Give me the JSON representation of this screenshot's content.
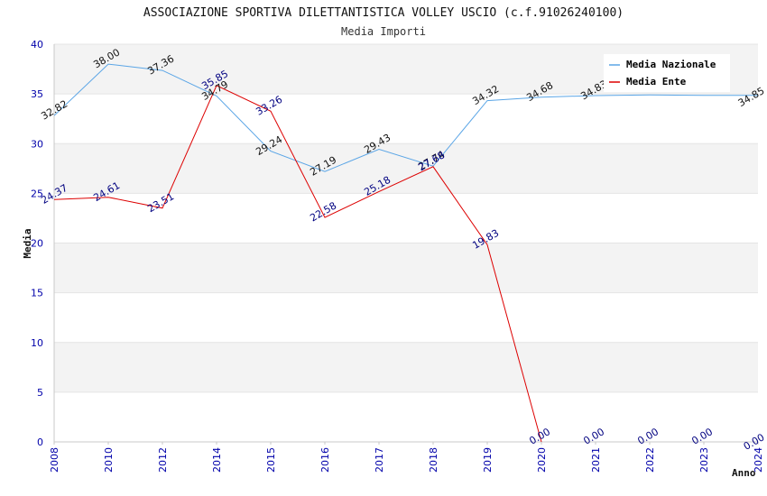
{
  "chart_data": {
    "type": "line",
    "title": "ASSOCIAZIONE SPORTIVA DILETTANTISTICA VOLLEY USCIO (c.f.91026240100)",
    "subtitle": "Media Importi",
    "ylabel": "Media",
    "xlabel": "Anno",
    "x": [
      "2008",
      "2010",
      "2012",
      "2014",
      "2015",
      "2016",
      "2017",
      "2018",
      "2019",
      "2020",
      "2021",
      "2022",
      "2023",
      "2024"
    ],
    "ylim": [
      0,
      40
    ],
    "yticks": [
      0,
      5,
      10,
      15,
      20,
      25,
      30,
      35,
      40
    ],
    "grid": true,
    "legend_position": "top-right",
    "series": [
      {
        "name": "Media Nazionale",
        "color": "#5aa5e6",
        "label_color": "#111111",
        "values": [
          32.82,
          38.0,
          37.36,
          34.79,
          29.24,
          27.19,
          29.43,
          27.74,
          34.32,
          34.68,
          34.83,
          34.89,
          34.85,
          34.85
        ],
        "labels": [
          "32.82",
          "38.00",
          "37.36",
          "34.79",
          "29.24",
          "27.19",
          "29.43",
          "27.74",
          "34.32",
          "34.68",
          "34.83",
          "",
          "",
          "34.85"
        ]
      },
      {
        "name": "Media Ente",
        "color": "#dd0000",
        "label_color": "#000080",
        "values": [
          24.37,
          24.61,
          23.51,
          35.85,
          33.26,
          22.58,
          25.18,
          27.68,
          19.83,
          0.0,
          null,
          null,
          null,
          null
        ],
        "labels": [
          "24.37",
          "24.61",
          "23.51",
          "35.85",
          "33.26",
          "22.58",
          "25.18",
          "27.68",
          "19.83",
          "0.00",
          "0.00",
          "0.00",
          "0.00",
          "0.00"
        ]
      }
    ]
  }
}
